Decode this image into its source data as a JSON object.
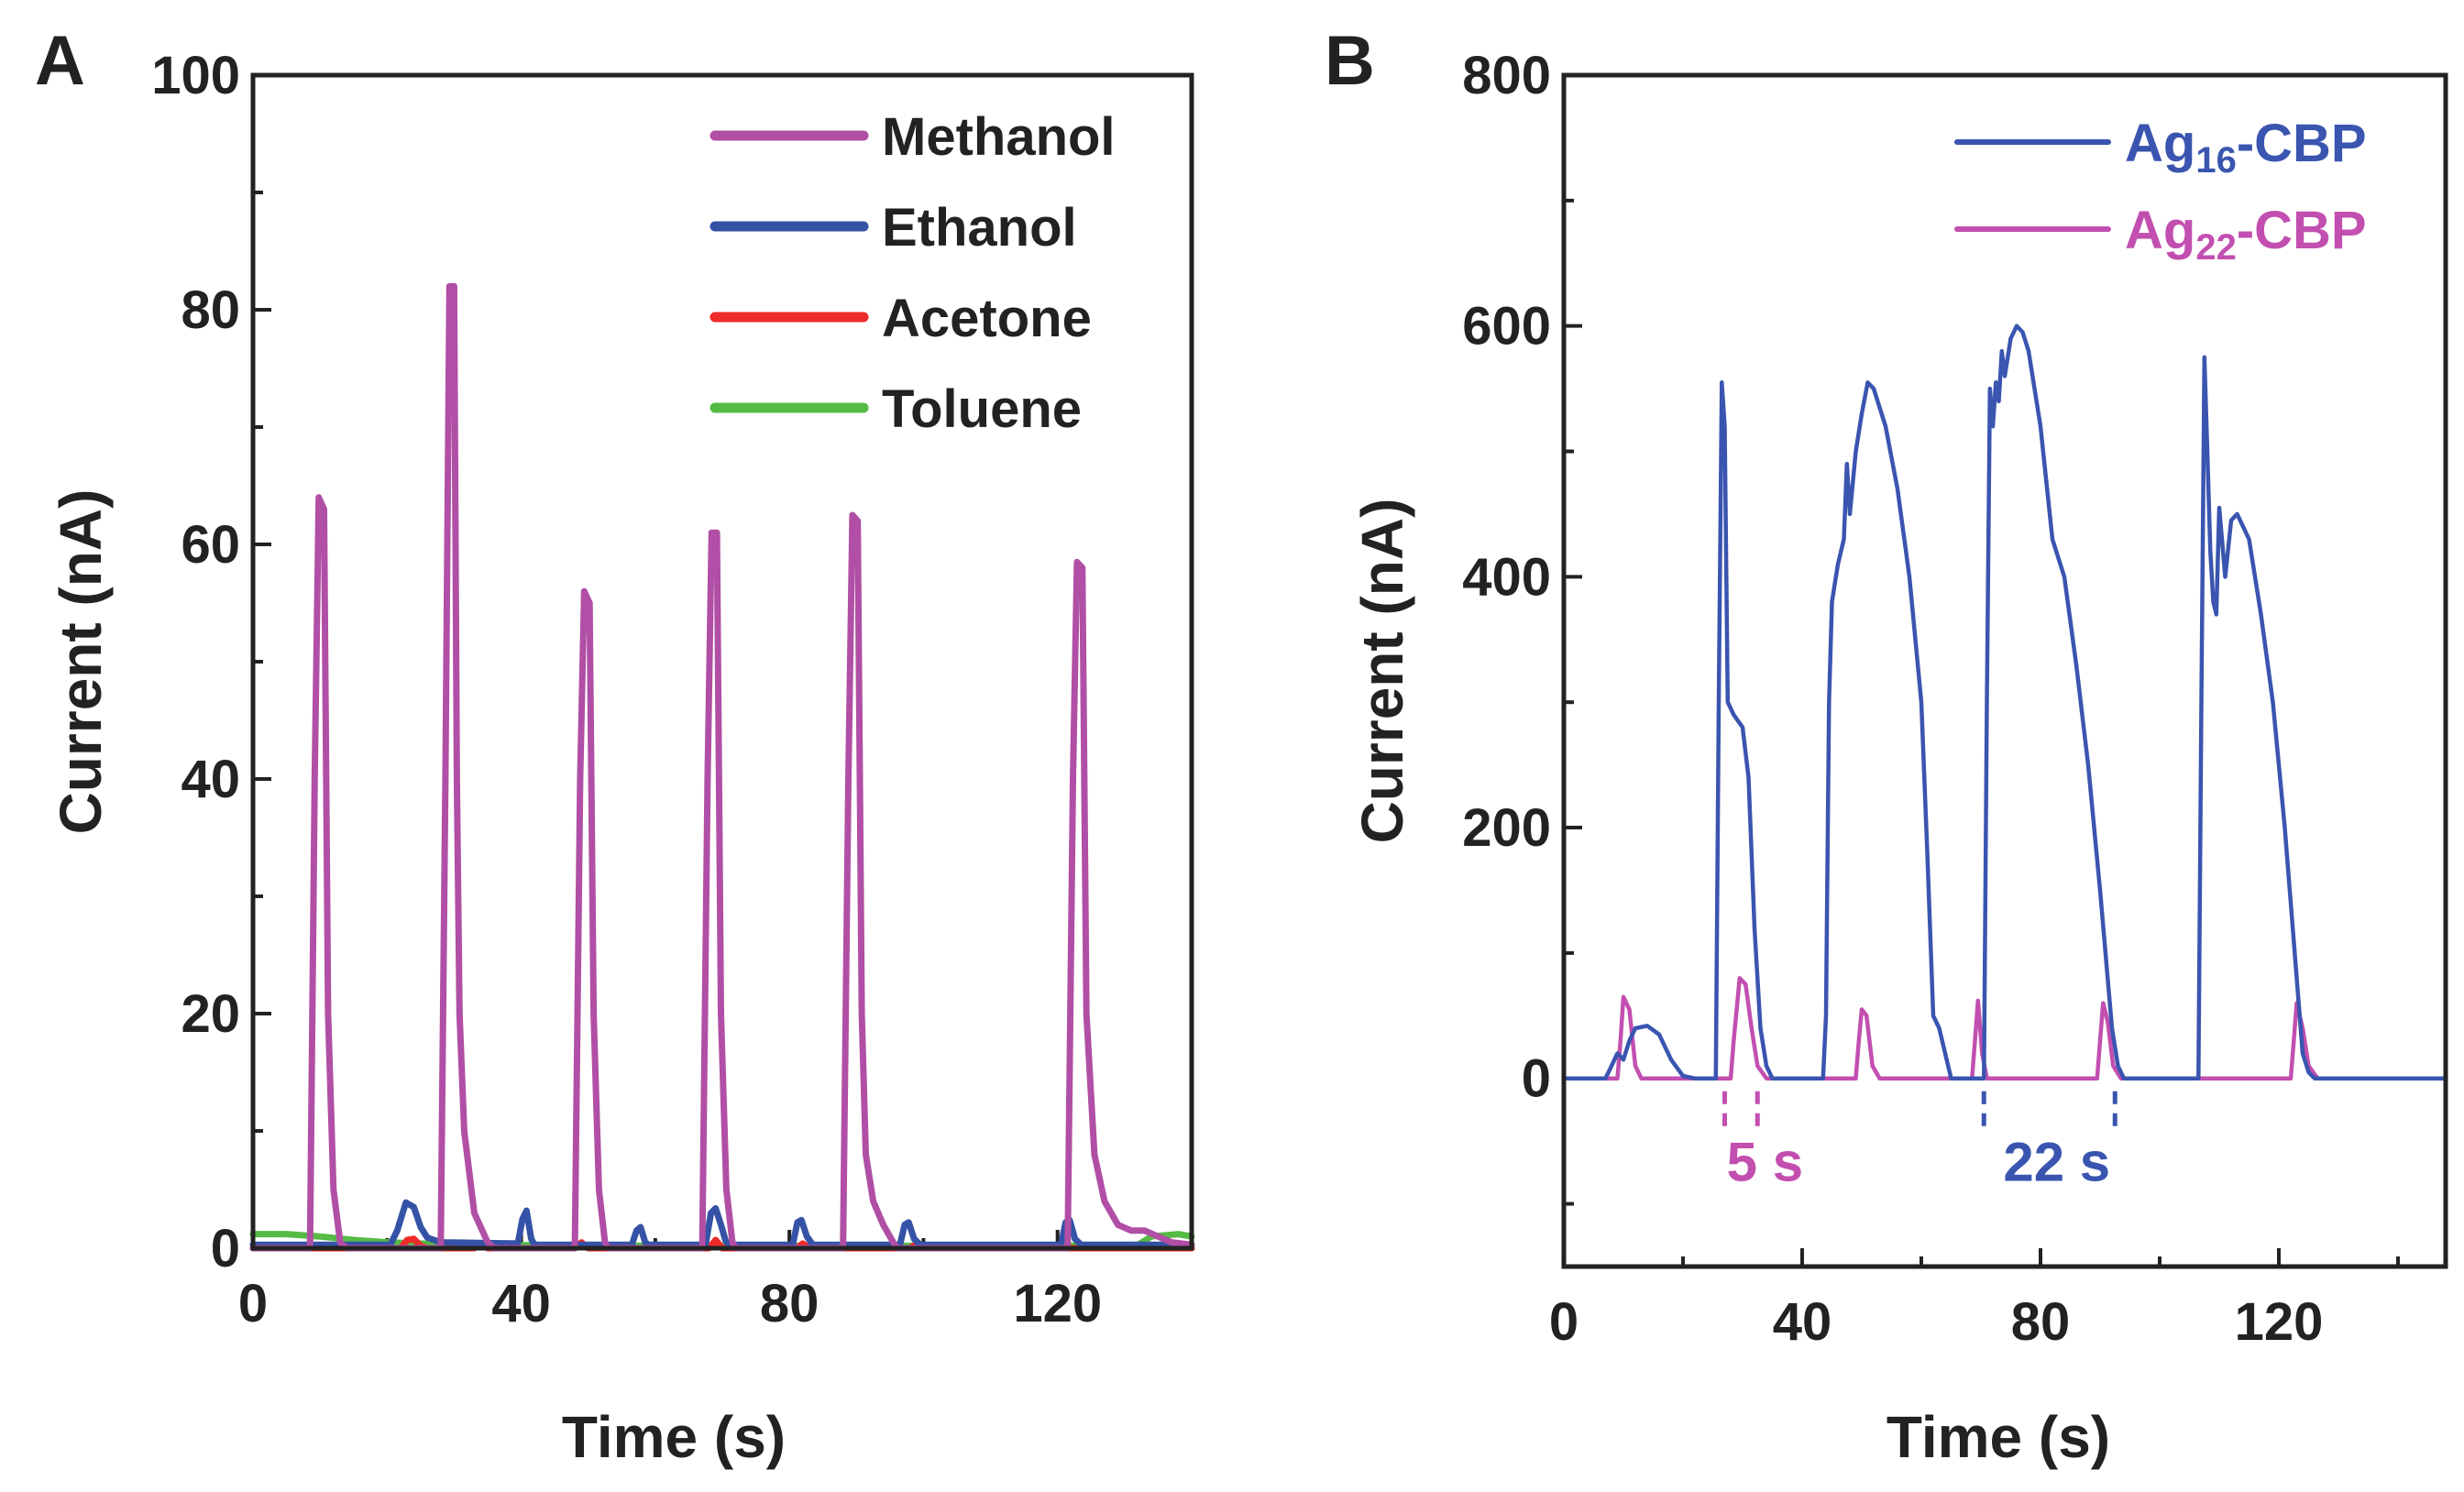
{
  "chart_data": [
    {
      "panel": "A",
      "type": "line",
      "title": "",
      "xlabel": "Time (s)",
      "ylabel": "Current (nA)",
      "xlim": [
        0,
        140
      ],
      "ylim": [
        0,
        100
      ],
      "xticks": [
        0,
        40,
        80,
        120
      ],
      "yticks": [
        0,
        20,
        40,
        60,
        80,
        100
      ],
      "legend_position": "top-right",
      "series": [
        {
          "name": "Methanol",
          "color": "#b04fa5",
          "points": [
            [
              0,
              0
            ],
            [
              8.5,
              0
            ],
            [
              9.2,
              40
            ],
            [
              9.8,
              64
            ],
            [
              10.6,
              63
            ],
            [
              11.2,
              20
            ],
            [
              12,
              5
            ],
            [
              13,
              0.5
            ],
            [
              14,
              0
            ],
            [
              28,
              0
            ],
            [
              28.7,
              40
            ],
            [
              29.3,
              82
            ],
            [
              30,
              82
            ],
            [
              30.4,
              40
            ],
            [
              30.8,
              20
            ],
            [
              31.5,
              10
            ],
            [
              33,
              3
            ],
            [
              35,
              0.5
            ],
            [
              36,
              0
            ],
            [
              48,
              0
            ],
            [
              48.8,
              40
            ],
            [
              49.4,
              56
            ],
            [
              50.2,
              55
            ],
            [
              50.8,
              20
            ],
            [
              51.6,
              5
            ],
            [
              52.5,
              0.5
            ],
            [
              53,
              0
            ],
            [
              67,
              0
            ],
            [
              67.8,
              40
            ],
            [
              68.4,
              61
            ],
            [
              69.2,
              61
            ],
            [
              69.8,
              20
            ],
            [
              70.6,
              5
            ],
            [
              71.5,
              0.5
            ],
            [
              72,
              0
            ],
            [
              88,
              0
            ],
            [
              88.8,
              40
            ],
            [
              89.4,
              62.5
            ],
            [
              90.2,
              62
            ],
            [
              90.8,
              20
            ],
            [
              91.4,
              8
            ],
            [
              92.5,
              4
            ],
            [
              94,
              2
            ],
            [
              95.5,
              0.5
            ],
            [
              96,
              0
            ],
            [
              121.5,
              0
            ],
            [
              122.3,
              40
            ],
            [
              122.9,
              58.5
            ],
            [
              123.7,
              58
            ],
            [
              124.3,
              20
            ],
            [
              125.5,
              8
            ],
            [
              127,
              4
            ],
            [
              129,
              2
            ],
            [
              131,
              1.5
            ],
            [
              133,
              1.5
            ],
            [
              135,
              1
            ],
            [
              137,
              0.5
            ],
            [
              140,
              0.3
            ]
          ]
        },
        {
          "name": "Ethanol",
          "color": "#3553a6",
          "points": [
            [
              0,
              0.3
            ],
            [
              20.5,
              0.3
            ],
            [
              21.5,
              1.5
            ],
            [
              22.8,
              3.9
            ],
            [
              24,
              3.5
            ],
            [
              25,
              1.8
            ],
            [
              26,
              0.9
            ],
            [
              28,
              0.5
            ],
            [
              39.5,
              0.4
            ],
            [
              40.2,
              2.5
            ],
            [
              40.8,
              3.2
            ],
            [
              41.5,
              0.8
            ],
            [
              42,
              0.3
            ],
            [
              56.5,
              0.3
            ],
            [
              57.2,
              1.5
            ],
            [
              57.8,
              1.8
            ],
            [
              58.5,
              0.5
            ],
            [
              59,
              0.3
            ],
            [
              67.5,
              0.3
            ],
            [
              68.3,
              3
            ],
            [
              69,
              3.4
            ],
            [
              69.8,
              2
            ],
            [
              70.5,
              0.6
            ],
            [
              71,
              0.3
            ],
            [
              80.5,
              0.3
            ],
            [
              81.2,
              2.2
            ],
            [
              81.8,
              2.4
            ],
            [
              82.6,
              1
            ],
            [
              83.5,
              0.3
            ],
            [
              96.5,
              0.3
            ],
            [
              97.2,
              2
            ],
            [
              97.8,
              2.2
            ],
            [
              98.6,
              0.8
            ],
            [
              99.5,
              0.3
            ],
            [
              120.5,
              0.3
            ],
            [
              121.2,
              2.2
            ],
            [
              121.8,
              2.4
            ],
            [
              122.6,
              0.8
            ],
            [
              123.5,
              0.3
            ],
            [
              140,
              0.3
            ]
          ]
        },
        {
          "name": "Acetone",
          "color": "#ee2a2a",
          "points": [
            [
              0,
              0
            ],
            [
              22,
              0
            ],
            [
              23,
              0.7
            ],
            [
              24,
              0.8
            ],
            [
              25,
              0.2
            ],
            [
              26,
              0
            ],
            [
              33,
              0
            ],
            [
              34,
              0.4
            ],
            [
              35,
              0
            ],
            [
              48,
              0
            ],
            [
              49,
              0.5
            ],
            [
              50,
              0
            ],
            [
              68,
              0
            ],
            [
              69,
              0.7
            ],
            [
              70,
              0
            ],
            [
              81,
              0
            ],
            [
              82,
              0.4
            ],
            [
              83,
              0
            ],
            [
              98,
              0
            ],
            [
              99,
              0.4
            ],
            [
              100,
              0
            ],
            [
              140,
              0
            ]
          ]
        },
        {
          "name": "Toluene",
          "color": "#55bb44",
          "points": [
            [
              0,
              1.2
            ],
            [
              5,
              1.2
            ],
            [
              10,
              1
            ],
            [
              15,
              0.7
            ],
            [
              20,
              0.5
            ],
            [
              30,
              0.3
            ],
            [
              60,
              0.2
            ],
            [
              120,
              0.2
            ],
            [
              132,
              0.3
            ],
            [
              134,
              1
            ],
            [
              138,
              1.2
            ],
            [
              140,
              1
            ]
          ]
        }
      ]
    },
    {
      "panel": "B",
      "type": "line",
      "title": "",
      "xlabel": "Time (s)",
      "ylabel": "Current (nA)",
      "xlim": [
        0,
        148
      ],
      "ylim": [
        -150,
        800
      ],
      "xticks": [
        0,
        40,
        80,
        120
      ],
      "yticks": [
        0,
        200,
        400,
        600,
        800
      ],
      "legend_position": "top-right",
      "series": [
        {
          "name": "Ag16-CBP",
          "legend_main": "Ag",
          "legend_sub": "16",
          "legend_suffix": "-CBP",
          "color": "#3a55b0",
          "points": [
            [
              0,
              0
            ],
            [
              7,
              0
            ],
            [
              8,
              10
            ],
            [
              9,
              20
            ],
            [
              10,
              15
            ],
            [
              11,
              30
            ],
            [
              12,
              40
            ],
            [
              14,
              42
            ],
            [
              16,
              35
            ],
            [
              18,
              15
            ],
            [
              20,
              2
            ],
            [
              22,
              0
            ],
            [
              25.5,
              0
            ],
            [
              26,
              300
            ],
            [
              26.5,
              555
            ],
            [
              27,
              520
            ],
            [
              27.5,
              300
            ],
            [
              28.5,
              290
            ],
            [
              30,
              280
            ],
            [
              31,
              240
            ],
            [
              32,
              120
            ],
            [
              33,
              40
            ],
            [
              34,
              10
            ],
            [
              35,
              0
            ],
            [
              43.5,
              0
            ],
            [
              44,
              50
            ],
            [
              44.5,
              300
            ],
            [
              45,
              380
            ],
            [
              46,
              410
            ],
            [
              47,
              430
            ],
            [
              47.5,
              490
            ],
            [
              48,
              450
            ],
            [
              49,
              500
            ],
            [
              50,
              530
            ],
            [
              51,
              555
            ],
            [
              52,
              550
            ],
            [
              54,
              520
            ],
            [
              56,
              470
            ],
            [
              58,
              400
            ],
            [
              60,
              300
            ],
            [
              61,
              180
            ],
            [
              62,
              50
            ],
            [
              63,
              40
            ],
            [
              64,
              20
            ],
            [
              65,
              0
            ],
            [
              70.5,
              0
            ],
            [
              71,
              300
            ],
            [
              71.5,
              550
            ],
            [
              72,
              520
            ],
            [
              72.5,
              555
            ],
            [
              73,
              540
            ],
            [
              73.5,
              580
            ],
            [
              74,
              560
            ],
            [
              75,
              590
            ],
            [
              76,
              600
            ],
            [
              77,
              595
            ],
            [
              78,
              580
            ],
            [
              80,
              520
            ],
            [
              82,
              430
            ],
            [
              84,
              400
            ],
            [
              86,
              330
            ],
            [
              88,
              250
            ],
            [
              90,
              150
            ],
            [
              92,
              40
            ],
            [
              93,
              10
            ],
            [
              94,
              0
            ],
            [
              106.5,
              0
            ],
            [
              107,
              300
            ],
            [
              107.5,
              575
            ],
            [
              108,
              500
            ],
            [
              108.5,
              420
            ],
            [
              109,
              380
            ],
            [
              109.5,
              370
            ],
            [
              110,
              455
            ],
            [
              111,
              400
            ],
            [
              112,
              445
            ],
            [
              113,
              450
            ],
            [
              115,
              430
            ],
            [
              117,
              370
            ],
            [
              119,
              300
            ],
            [
              121,
              200
            ],
            [
              123,
              80
            ],
            [
              124,
              20
            ],
            [
              125,
              5
            ],
            [
              126,
              0
            ],
            [
              148,
              0
            ]
          ]
        },
        {
          "name": "Ag22-CBP",
          "legend_main": "Ag",
          "legend_sub": "22",
          "legend_suffix": "-CBP",
          "color": "#c24fb0",
          "points": [
            [
              0,
              0
            ],
            [
              9,
              0
            ],
            [
              9.5,
              30
            ],
            [
              10,
              65
            ],
            [
              11,
              55
            ],
            [
              12,
              10
            ],
            [
              13,
              0
            ],
            [
              28,
              0
            ],
            [
              28.5,
              30
            ],
            [
              29.5,
              80
            ],
            [
              30.5,
              75
            ],
            [
              31.5,
              40
            ],
            [
              32.5,
              10
            ],
            [
              34,
              0
            ],
            [
              49,
              0
            ],
            [
              49.5,
              30
            ],
            [
              50,
              55
            ],
            [
              50.8,
              50
            ],
            [
              51.8,
              10
            ],
            [
              53,
              0
            ],
            [
              68.5,
              0
            ],
            [
              69,
              30
            ],
            [
              69.5,
              62
            ],
            [
              70.2,
              20
            ],
            [
              71,
              0
            ],
            [
              89.5,
              0
            ],
            [
              90,
              30
            ],
            [
              90.5,
              60
            ],
            [
              91.3,
              45
            ],
            [
              92.2,
              10
            ],
            [
              93.5,
              0
            ],
            [
              122,
              0
            ],
            [
              122.5,
              30
            ],
            [
              123,
              60
            ],
            [
              124,
              40
            ],
            [
              125,
              10
            ],
            [
              126.5,
              0
            ],
            [
              148,
              0
            ]
          ]
        }
      ],
      "annotations": [
        {
          "text": "5 s",
          "color": "#c24fb0",
          "x_start": 27,
          "x_end": 32.5
        },
        {
          "text": "22 s",
          "color": "#3a55b0",
          "x_start": 70.5,
          "x_end": 92.5
        }
      ]
    }
  ],
  "panels": [
    {
      "letter": "A"
    },
    {
      "letter": "B"
    }
  ]
}
